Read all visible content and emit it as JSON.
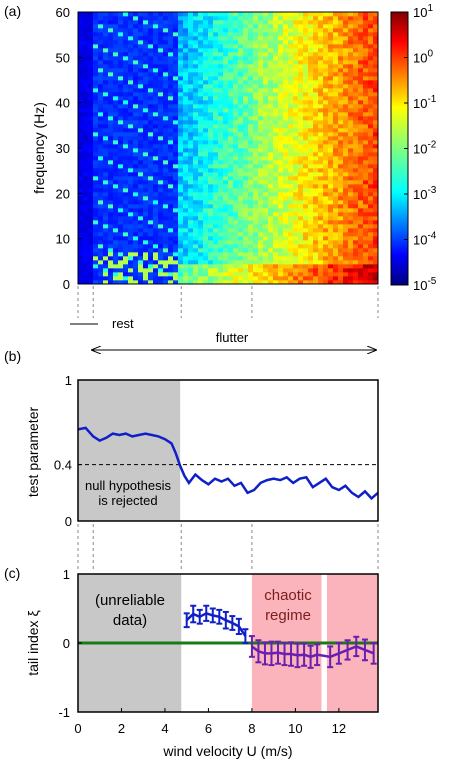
{
  "chart_data": [
    {
      "panel": "(a)",
      "type": "heatmap",
      "ylabel": "frequency (Hz)",
      "ylim": [
        0,
        60
      ],
      "yticks": [
        "0",
        "10",
        "20",
        "30",
        "40",
        "50",
        "60"
      ],
      "colorbar": {
        "scale": "log",
        "range": [
          1e-05,
          10
        ],
        "ticks": [
          {
            "base": "10",
            "exp": "1"
          },
          {
            "base": "10",
            "exp": "0"
          },
          {
            "base": "10",
            "exp": "-1"
          },
          {
            "base": "10",
            "exp": "-2"
          },
          {
            "base": "10",
            "exp": "-3"
          },
          {
            "base": "10",
            "exp": "-4"
          },
          {
            "base": "10",
            "exp": "-5"
          }
        ]
      },
      "annotations": {
        "rest": "rest",
        "flutter": "flutter"
      }
    },
    {
      "panel": "(b)",
      "type": "line",
      "ylabel": "test parameter",
      "ylim": [
        0,
        1
      ],
      "yticks": [
        "0",
        "0.4",
        "1"
      ],
      "threshold": 0.4,
      "shaded_label": [
        "null hypothesis",
        "is rejected"
      ],
      "shaded_range": [
        0,
        4.7
      ],
      "x": [
        0,
        0.35,
        0.7,
        1.0,
        1.3,
        1.6,
        1.9,
        2.2,
        2.5,
        2.8,
        3.1,
        3.4,
        3.7,
        4.0,
        4.3,
        4.5,
        4.7,
        4.9,
        5.1,
        5.4,
        5.7,
        6.0,
        6.3,
        6.6,
        6.9,
        7.2,
        7.5,
        7.8,
        8.1,
        8.4,
        8.7,
        9.0,
        9.3,
        9.6,
        9.9,
        10.2,
        10.5,
        10.8,
        11.1,
        11.4,
        11.7,
        12.0,
        12.3,
        12.6,
        12.9,
        13.2,
        13.5,
        13.8
      ],
      "y": [
        0.65,
        0.66,
        0.6,
        0.57,
        0.59,
        0.62,
        0.61,
        0.62,
        0.6,
        0.61,
        0.62,
        0.61,
        0.6,
        0.58,
        0.55,
        0.48,
        0.39,
        0.32,
        0.27,
        0.33,
        0.29,
        0.26,
        0.3,
        0.28,
        0.3,
        0.25,
        0.27,
        0.2,
        0.22,
        0.27,
        0.29,
        0.3,
        0.29,
        0.31,
        0.27,
        0.3,
        0.31,
        0.24,
        0.27,
        0.3,
        0.24,
        0.22,
        0.25,
        0.2,
        0.17,
        0.21,
        0.16,
        0.2
      ]
    },
    {
      "panel": "(c)",
      "type": "scatter",
      "ylabel": "tail index ξ",
      "xlabel": "wind velocity U (m/s)",
      "xlim": [
        0,
        13.8
      ],
      "ylim": [
        -1,
        1
      ],
      "xticks": [
        "0",
        "2",
        "4",
        "6",
        "8",
        "10",
        "12"
      ],
      "yticks": [
        "-1",
        "0",
        "1"
      ],
      "zero_line": 0,
      "regions": {
        "unreliable": {
          "label": [
            "(unreliable",
            "data)"
          ],
          "range": [
            0,
            4.75
          ]
        },
        "chaotic": {
          "label": [
            "chaotic",
            "regime"
          ],
          "range": [
            8.0,
            13.8
          ],
          "gap": [
            11.2,
            11.45
          ]
        }
      },
      "series": [
        {
          "color": "#1020c8",
          "x": [
            5.0,
            5.3,
            5.6,
            5.9,
            6.2,
            6.5,
            6.8,
            7.1,
            7.4,
            7.7
          ],
          "y": [
            0.33,
            0.42,
            0.38,
            0.43,
            0.4,
            0.38,
            0.33,
            0.29,
            0.24,
            0.1
          ],
          "err": [
            0.1,
            0.12,
            0.1,
            0.11,
            0.1,
            0.1,
            0.12,
            0.1,
            0.11,
            0.1
          ]
        },
        {
          "color": "#6a1fb0",
          "x": [
            8.0,
            8.3,
            8.6,
            8.9,
            9.2,
            9.5,
            9.8,
            10.1,
            10.4,
            10.7,
            11.0,
            11.6,
            12.0,
            12.4,
            12.8,
            13.2,
            13.6
          ],
          "y": [
            -0.05,
            -0.12,
            -0.15,
            -0.15,
            -0.14,
            -0.16,
            -0.16,
            -0.18,
            -0.17,
            -0.2,
            -0.17,
            -0.2,
            -0.15,
            -0.1,
            -0.05,
            -0.1,
            -0.15
          ],
          "err": [
            0.15,
            0.16,
            0.16,
            0.17,
            0.16,
            0.16,
            0.17,
            0.17,
            0.16,
            0.16,
            0.15,
            0.15,
            0.15,
            0.14,
            0.14,
            0.15,
            0.15
          ]
        }
      ]
    }
  ]
}
